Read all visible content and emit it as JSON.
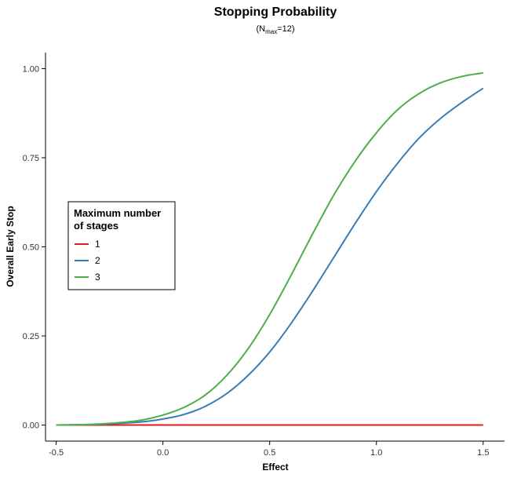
{
  "chart_data": {
    "type": "line",
    "title": "Stopping Probability",
    "subtitle": {
      "prefix": "(N",
      "subscript": "max",
      "suffix": "=12)"
    },
    "xlabel": "Effect",
    "ylabel": "Overall Early Stop",
    "xlim": [
      -0.55,
      1.6
    ],
    "ylim": [
      -0.045,
      1.045
    ],
    "x_ticks": [
      {
        "value": -0.5,
        "label": "-0.5"
      },
      {
        "value": 0.0,
        "label": "0.0"
      },
      {
        "value": 0.5,
        "label": "0.5"
      },
      {
        "value": 1.0,
        "label": "1.0"
      },
      {
        "value": 1.5,
        "label": "1.5"
      }
    ],
    "y_ticks": [
      {
        "value": 0.0,
        "label": "0.00"
      },
      {
        "value": 0.25,
        "label": "0.25"
      },
      {
        "value": 0.5,
        "label": "0.50"
      },
      {
        "value": 0.75,
        "label": "0.75"
      },
      {
        "value": 1.0,
        "label": "1.00"
      }
    ],
    "grid": false,
    "legend": {
      "title_lines": [
        "Maximum number",
        "of stages"
      ],
      "placement": "left-middle"
    },
    "x": [
      -0.5,
      -0.4,
      -0.3,
      -0.2,
      -0.1,
      0.0,
      0.1,
      0.2,
      0.3,
      0.4,
      0.5,
      0.6,
      0.7,
      0.8,
      0.9,
      1.0,
      1.1,
      1.2,
      1.3,
      1.4,
      1.5
    ],
    "series": [
      {
        "name": "1",
        "color": "#e41a1c",
        "values": [
          0,
          0,
          0,
          0,
          0,
          0,
          0,
          0,
          0,
          0,
          0,
          0,
          0,
          0,
          0,
          0,
          0,
          0,
          0,
          0,
          0
        ]
      },
      {
        "name": "2",
        "color": "#377eb8",
        "values": [
          0.0,
          0.001,
          0.002,
          0.005,
          0.009,
          0.017,
          0.03,
          0.053,
          0.089,
          0.14,
          0.205,
          0.285,
          0.375,
          0.47,
          0.565,
          0.655,
          0.735,
          0.805,
          0.86,
          0.905,
          0.945
        ]
      },
      {
        "name": "3",
        "color": "#4daf4a",
        "values": [
          0.0,
          0.001,
          0.003,
          0.007,
          0.014,
          0.028,
          0.05,
          0.085,
          0.14,
          0.215,
          0.31,
          0.42,
          0.535,
          0.645,
          0.74,
          0.82,
          0.885,
          0.93,
          0.96,
          0.978,
          0.988
        ]
      }
    ]
  }
}
